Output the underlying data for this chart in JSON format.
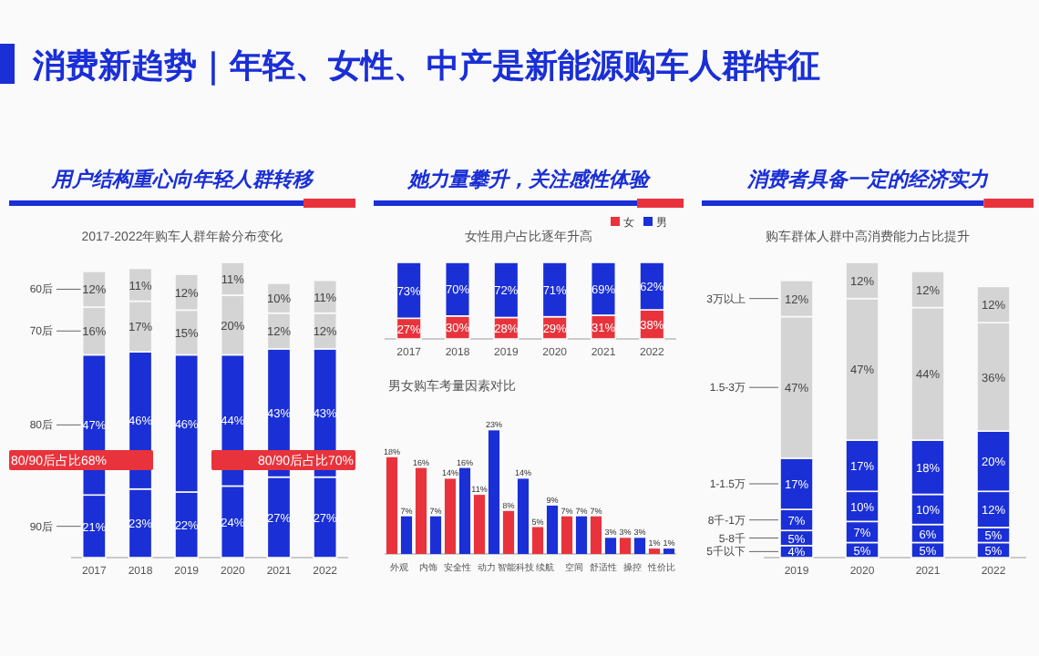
{
  "chart_data": [
    {
      "type": "other",
      "title": "消费新趋势｜年轻、女性、中产是新能源购车人群特征"
    },
    {
      "type": "bar",
      "stacked": true,
      "title": "用户结构重心向年轻人群转移",
      "subtitle": "2017-2022年购车人群年龄分布变化",
      "categories": [
        "2017",
        "2018",
        "2019",
        "2020",
        "2021",
        "2022"
      ],
      "series": [
        {
          "name": "90后",
          "color": "#1a2fd6",
          "values": [
            21,
            23,
            22,
            24,
            27,
            27
          ],
          "value_labels": [
            "21%",
            "23%",
            "22%",
            "24%",
            "27%",
            "27%"
          ]
        },
        {
          "name": "80后",
          "color": "#1a2fd6",
          "values": [
            47,
            46,
            46,
            44,
            43,
            43
          ],
          "value_labels": [
            "47%",
            "46%",
            "46%",
            "44%",
            "43%",
            "43%"
          ]
        },
        {
          "name": "70后",
          "color": "#d4d4d4",
          "values": [
            16,
            17,
            15,
            20,
            12,
            12
          ],
          "value_labels": [
            "16%",
            "17%",
            "15%",
            "20%",
            "12%",
            "12%"
          ]
        },
        {
          "name": "60后",
          "color": "#d4d4d4",
          "values": [
            12,
            11,
            12,
            11,
            10,
            11
          ],
          "value_labels": [
            "12%",
            "11%",
            "12%",
            "11%",
            "10%",
            "11%"
          ]
        }
      ],
      "annotations": [
        "80/90后占比68%",
        "80/90后占比70%"
      ]
    },
    {
      "type": "bar",
      "stacked": true,
      "legend": "top right",
      "title": "她力量攀升，关注感性体验",
      "subtitle": "女性用户占比逐年升高",
      "categories": [
        "2017",
        "2018",
        "2019",
        "2020",
        "2021",
        "2022"
      ],
      "series": [
        {
          "name": "女",
          "color": "#e8333c",
          "values": [
            27,
            30,
            28,
            29,
            31,
            38
          ],
          "value_labels": [
            "27%",
            "30%",
            "28%",
            "29%",
            "31%",
            "38%"
          ]
        },
        {
          "name": "男",
          "color": "#1a2fd6",
          "values": [
            73,
            70,
            72,
            71,
            69,
            62
          ],
          "value_labels": [
            "73%",
            "70%",
            "72%",
            "71%",
            "69%",
            "62%"
          ]
        }
      ]
    },
    {
      "type": "bar",
      "subtitle": "男女购车考量因素对比",
      "categories": [
        "外观",
        "内饰",
        "安全性",
        "动力",
        "智能科技",
        "续航",
        "空间",
        "舒适性",
        "操控",
        "性价比"
      ],
      "series": [
        {
          "color": "#e8333c",
          "values": [
            18,
            16,
            14,
            11,
            8,
            5,
            7,
            7,
            3,
            1
          ],
          "value_labels": [
            "18%",
            "16%",
            "14%",
            "11%",
            "8%",
            "5%",
            "7%",
            "7%",
            "3%",
            "1%"
          ]
        },
        {
          "color": "#1a2fd6",
          "values": [
            7,
            7,
            16,
            23,
            14,
            9,
            7,
            3,
            3,
            1
          ],
          "value_labels": [
            "7%",
            "7%",
            "16%",
            "23%",
            "14%",
            "9%",
            "7%",
            "3%",
            "3%",
            "1%"
          ]
        }
      ]
    },
    {
      "type": "bar",
      "stacked": true,
      "title": "消费者具备一定的经济实力",
      "subtitle": "购车群体人群中高消费能力占比提升",
      "categories": [
        "2019",
        "2020",
        "2021",
        "2022"
      ],
      "series": [
        {
          "name": "5千以下",
          "color": "#1a2fd6",
          "values": [
            4,
            5,
            5,
            5
          ],
          "value_labels": [
            "4%",
            "5%",
            "5%",
            "5%"
          ]
        },
        {
          "name": "5-8千",
          "color": "#1a2fd6",
          "values": [
            5,
            7,
            6,
            5
          ],
          "value_labels": [
            "5%",
            "7%",
            "6%",
            "5%"
          ]
        },
        {
          "name": "8千-1万",
          "color": "#1a2fd6",
          "values": [
            7,
            10,
            10,
            12
          ],
          "value_labels": [
            "7%",
            "10%",
            "10%",
            "12%"
          ]
        },
        {
          "name": "1-1.5万",
          "color": "#1a2fd6",
          "values": [
            17,
            17,
            18,
            20
          ],
          "value_labels": [
            "17%",
            "17%",
            "18%",
            "20%"
          ]
        },
        {
          "name": "1.5-3万",
          "color": "#d4d4d4",
          "values": [
            47,
            47,
            44,
            36
          ],
          "value_labels": [
            "47%",
            "47%",
            "44%",
            "36%"
          ]
        },
        {
          "name": "3万以上",
          "color": "#d4d4d4",
          "values": [
            12,
            12,
            12,
            12
          ],
          "value_labels": [
            "12%",
            "12%",
            "12%",
            "12%"
          ]
        }
      ]
    }
  ]
}
